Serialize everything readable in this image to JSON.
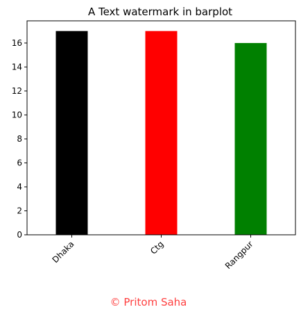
{
  "chart_data": {
    "type": "bar",
    "title": "A Text watermark in barplot",
    "xlabel": "",
    "ylabel": "",
    "categories": [
      "Dhaka",
      "Ctg",
      "Rangpur"
    ],
    "values": [
      17,
      17,
      16
    ],
    "bar_colors": [
      "#000000",
      "#ff0000",
      "#008000"
    ],
    "ylim": [
      0,
      17.85
    ],
    "yticks": [
      0,
      2,
      4,
      6,
      8,
      10,
      12,
      14,
      16
    ],
    "x_tick_rotation": 45,
    "grid": false,
    "legend": "none"
  },
  "watermark": {
    "text": "© Pritom Saha",
    "color": "#ff4040"
  }
}
